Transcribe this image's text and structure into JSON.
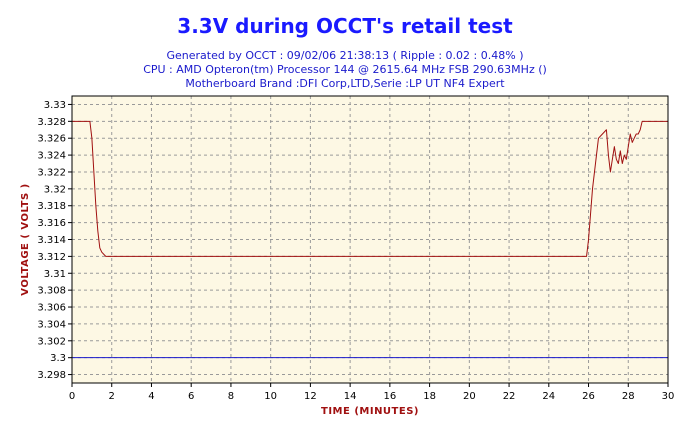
{
  "chart_data": {
    "type": "line",
    "title": "3.3V during OCCT's retail test",
    "subtitle_lines": [
      "Generated by OCCT : 09/02/06 21:38:13 ( Ripple : 0.02 : 0.48% )",
      "CPU : AMD Opteron(tm) Processor 144    @ 2615.64 MHz FSB 290.63MHz ()",
      "Motherboard Brand :DFI Corp,LTD,Serie :LP UT NF4 Expert"
    ],
    "xlabel": "TIME (MINUTES)",
    "ylabel": "VOLTAGE ( VOLTS )",
    "xlim": [
      0,
      30
    ],
    "ylim": [
      3.297,
      3.331
    ],
    "x_ticks": [
      0,
      2,
      4,
      6,
      8,
      10,
      12,
      14,
      16,
      18,
      20,
      22,
      24,
      26,
      28,
      30
    ],
    "y_ticks": [
      3.298,
      3.3,
      3.302,
      3.304,
      3.306,
      3.308,
      3.31,
      3.312,
      3.314,
      3.316,
      3.318,
      3.32,
      3.322,
      3.324,
      3.326,
      3.328,
      3.33
    ],
    "y_tick_labels": [
      "3.298",
      "3.3",
      "3.302",
      "3.304",
      "3.306",
      "3.308",
      "3.31",
      "3.312",
      "3.314",
      "3.316",
      "3.318",
      "3.32",
      "3.322",
      "3.324",
      "3.326",
      "3.328",
      "3.33"
    ],
    "grid": true,
    "background_color": "#fdf8e4",
    "series": [
      {
        "color": "#a01010",
        "x": [
          0,
          0.9,
          1.0,
          1.1,
          1.2,
          1.3,
          1.4,
          1.5,
          1.7,
          2.0,
          10,
          20,
          25.9,
          26.0,
          26.2,
          26.4,
          26.5,
          26.7,
          26.9,
          27.0,
          27.1,
          27.2,
          27.3,
          27.4,
          27.5,
          27.6,
          27.7,
          27.8,
          27.9,
          28.0,
          28.1,
          28.2,
          28.3,
          28.4,
          28.5,
          28.6,
          28.7,
          28.8,
          28.9,
          29.0,
          29.5,
          30
        ],
        "y": [
          3.328,
          3.328,
          3.326,
          3.322,
          3.318,
          3.315,
          3.313,
          3.3125,
          3.312,
          3.312,
          3.312,
          3.312,
          3.312,
          3.314,
          3.32,
          3.324,
          3.326,
          3.3265,
          3.327,
          3.324,
          3.322,
          3.3235,
          3.325,
          3.3235,
          3.323,
          3.3245,
          3.323,
          3.324,
          3.3235,
          3.325,
          3.3265,
          3.3255,
          3.326,
          3.3265,
          3.3265,
          3.327,
          3.328,
          3.328,
          3.328,
          3.328,
          3.328,
          3.328
        ]
      },
      {
        "color": "#1a1acc",
        "x": [
          0,
          30
        ],
        "y": [
          3.3,
          3.3
        ]
      }
    ]
  }
}
